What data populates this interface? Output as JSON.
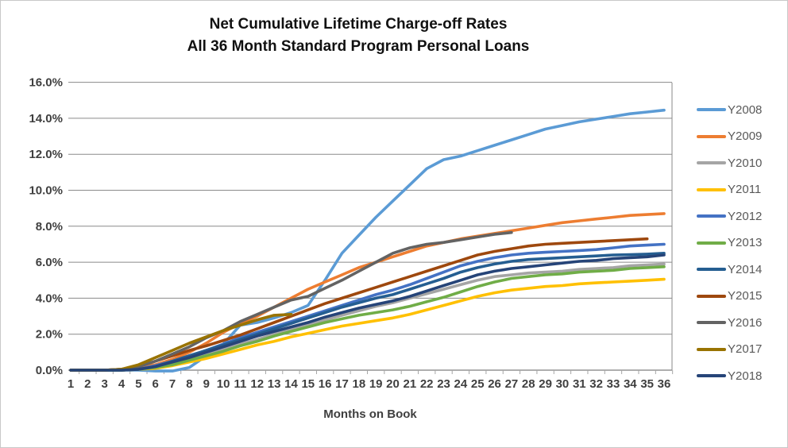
{
  "title": {
    "line1": "Net Cumulative Lifetime Charge-off Rates",
    "line2": "All 36 Month Standard Program Personal Loans"
  },
  "chart_data": {
    "type": "line",
    "title": "Net Cumulative Lifetime Charge-off Rates — All 36 Month Standard Program Personal Loans",
    "xlabel": "Months on Book",
    "ylabel": "",
    "x": [
      1,
      2,
      3,
      4,
      5,
      6,
      7,
      8,
      9,
      10,
      11,
      12,
      13,
      14,
      15,
      16,
      17,
      18,
      19,
      20,
      21,
      22,
      23,
      24,
      25,
      26,
      27,
      28,
      29,
      30,
      31,
      32,
      33,
      34,
      35,
      36
    ],
    "ylim": [
      0,
      16
    ],
    "y_tick_step": 2,
    "y_tick_labels": [
      "0.0%",
      "2.0%",
      "4.0%",
      "6.0%",
      "8.0%",
      "10.0%",
      "12.0%",
      "14.0%",
      "16.0%"
    ],
    "grid": true,
    "legend_position": "right",
    "series": [
      {
        "name": "Y2008",
        "color": "#5B9BD5",
        "values": [
          0,
          0,
          0,
          0,
          0,
          -0.05,
          -0.05,
          0.15,
          0.8,
          1.45,
          2.5,
          2.65,
          2.9,
          3.2,
          3.6,
          5.0,
          6.5,
          7.5,
          8.5,
          9.4,
          10.3,
          11.2,
          11.7,
          11.9,
          12.2,
          12.5,
          12.8,
          13.1,
          13.4,
          13.6,
          13.8,
          13.95,
          14.1,
          14.25,
          14.35,
          14.45
        ]
      },
      {
        "name": "Y2009",
        "color": "#ED7D31",
        "values": [
          0,
          0,
          0,
          0.05,
          0.15,
          0.3,
          0.6,
          1.0,
          1.5,
          2.1,
          2.6,
          3.0,
          3.5,
          4.0,
          4.5,
          4.9,
          5.3,
          5.7,
          6.0,
          6.3,
          6.6,
          6.9,
          7.1,
          7.3,
          7.45,
          7.6,
          7.75,
          7.9,
          8.05,
          8.2,
          8.3,
          8.4,
          8.5,
          8.6,
          8.65,
          8.7
        ]
      },
      {
        "name": "Y2010",
        "color": "#A5A5A5",
        "values": [
          0,
          0,
          0,
          0,
          0.05,
          0.15,
          0.35,
          0.6,
          0.85,
          1.15,
          1.45,
          1.7,
          2.0,
          2.25,
          2.5,
          2.8,
          3.05,
          3.3,
          3.55,
          3.75,
          4.0,
          4.25,
          4.5,
          4.75,
          5.0,
          5.2,
          5.3,
          5.4,
          5.45,
          5.5,
          5.6,
          5.65,
          5.7,
          5.8,
          5.85,
          5.9
        ]
      },
      {
        "name": "Y2011",
        "color": "#FFC000",
        "values": [
          0,
          0,
          0,
          0,
          0.05,
          0.1,
          0.25,
          0.45,
          0.65,
          0.9,
          1.15,
          1.4,
          1.6,
          1.85,
          2.05,
          2.25,
          2.45,
          2.6,
          2.75,
          2.9,
          3.1,
          3.35,
          3.6,
          3.85,
          4.1,
          4.3,
          4.45,
          4.55,
          4.65,
          4.7,
          4.8,
          4.85,
          4.9,
          4.95,
          5.0,
          5.05
        ]
      },
      {
        "name": "Y2012",
        "color": "#4472C4",
        "values": [
          0,
          0,
          0,
          0,
          0.05,
          0.25,
          0.5,
          0.8,
          1.1,
          1.45,
          1.8,
          2.1,
          2.4,
          2.7,
          3.0,
          3.3,
          3.6,
          3.9,
          4.2,
          4.45,
          4.75,
          5.1,
          5.45,
          5.8,
          6.05,
          6.25,
          6.4,
          6.5,
          6.55,
          6.6,
          6.65,
          6.7,
          6.8,
          6.9,
          6.95,
          7.0
        ]
      },
      {
        "name": "Y2013",
        "color": "#70AD47",
        "values": [
          0,
          0,
          0,
          0,
          0.05,
          0.15,
          0.3,
          0.55,
          0.8,
          1.05,
          1.35,
          1.6,
          1.9,
          2.15,
          2.4,
          2.65,
          2.85,
          3.05,
          3.2,
          3.35,
          3.55,
          3.8,
          4.05,
          4.35,
          4.65,
          4.9,
          5.1,
          5.2,
          5.3,
          5.35,
          5.45,
          5.5,
          5.55,
          5.65,
          5.7,
          5.75
        ]
      },
      {
        "name": "Y2014",
        "color": "#255E91",
        "values": [
          0,
          0,
          0,
          0,
          0.05,
          0.2,
          0.5,
          0.8,
          1.1,
          1.4,
          1.7,
          2.0,
          2.3,
          2.6,
          2.9,
          3.2,
          3.5,
          3.75,
          4.0,
          4.2,
          4.5,
          4.8,
          5.1,
          5.45,
          5.7,
          5.9,
          6.05,
          6.15,
          6.2,
          6.25,
          6.3,
          6.35,
          6.4,
          6.42,
          6.45,
          6.5
        ]
      },
      {
        "name": "Y2015",
        "color": "#9E480E",
        "values": [
          0,
          0,
          0,
          0.05,
          0.2,
          0.5,
          0.8,
          1.1,
          1.35,
          1.65,
          1.95,
          2.3,
          2.65,
          3.0,
          3.35,
          3.7,
          4.0,
          4.3,
          4.6,
          4.9,
          5.2,
          5.5,
          5.8,
          6.1,
          6.4,
          6.6,
          6.75,
          6.9,
          7.0,
          7.05,
          7.1,
          7.15,
          7.2,
          7.25,
          7.3,
          null
        ]
      },
      {
        "name": "Y2016",
        "color": "#636363",
        "values": [
          0,
          0,
          0,
          0.05,
          0.2,
          0.5,
          0.9,
          1.3,
          1.8,
          2.2,
          2.7,
          3.1,
          3.5,
          3.9,
          4.1,
          4.55,
          5.0,
          5.5,
          6.0,
          6.5,
          6.8,
          7.0,
          7.1,
          7.25,
          7.4,
          7.55,
          7.65,
          null,
          null,
          null,
          null,
          null,
          null,
          null,
          null,
          null
        ]
      },
      {
        "name": "Y2017",
        "color": "#997300",
        "values": [
          0,
          0,
          0,
          0.05,
          0.3,
          0.7,
          1.1,
          1.5,
          1.85,
          2.2,
          2.5,
          2.8,
          3.05,
          3.1,
          null,
          null,
          null,
          null,
          null,
          null,
          null,
          null,
          null,
          null,
          null,
          null,
          null,
          null,
          null,
          null,
          null,
          null,
          null,
          null,
          null,
          null
        ]
      },
      {
        "name": "Y2018",
        "color": "#264478",
        "values": [
          0,
          0,
          0,
          0,
          0.05,
          0.2,
          0.45,
          0.7,
          1.0,
          1.3,
          1.6,
          1.9,
          2.15,
          2.4,
          2.65,
          2.95,
          3.2,
          3.45,
          3.65,
          3.85,
          4.1,
          4.4,
          4.7,
          5.0,
          5.3,
          5.5,
          5.65,
          5.75,
          5.85,
          5.95,
          6.05,
          6.1,
          6.2,
          6.25,
          6.3,
          6.4
        ]
      }
    ]
  },
  "style_colors": {
    "gridline": "#8a8a8a",
    "axis_line": "#7f7f7f",
    "tick_mark": "#a6a6a6",
    "tick_label": "#3f3f3f",
    "legend_text": "#595959",
    "title_text": "#111111"
  }
}
